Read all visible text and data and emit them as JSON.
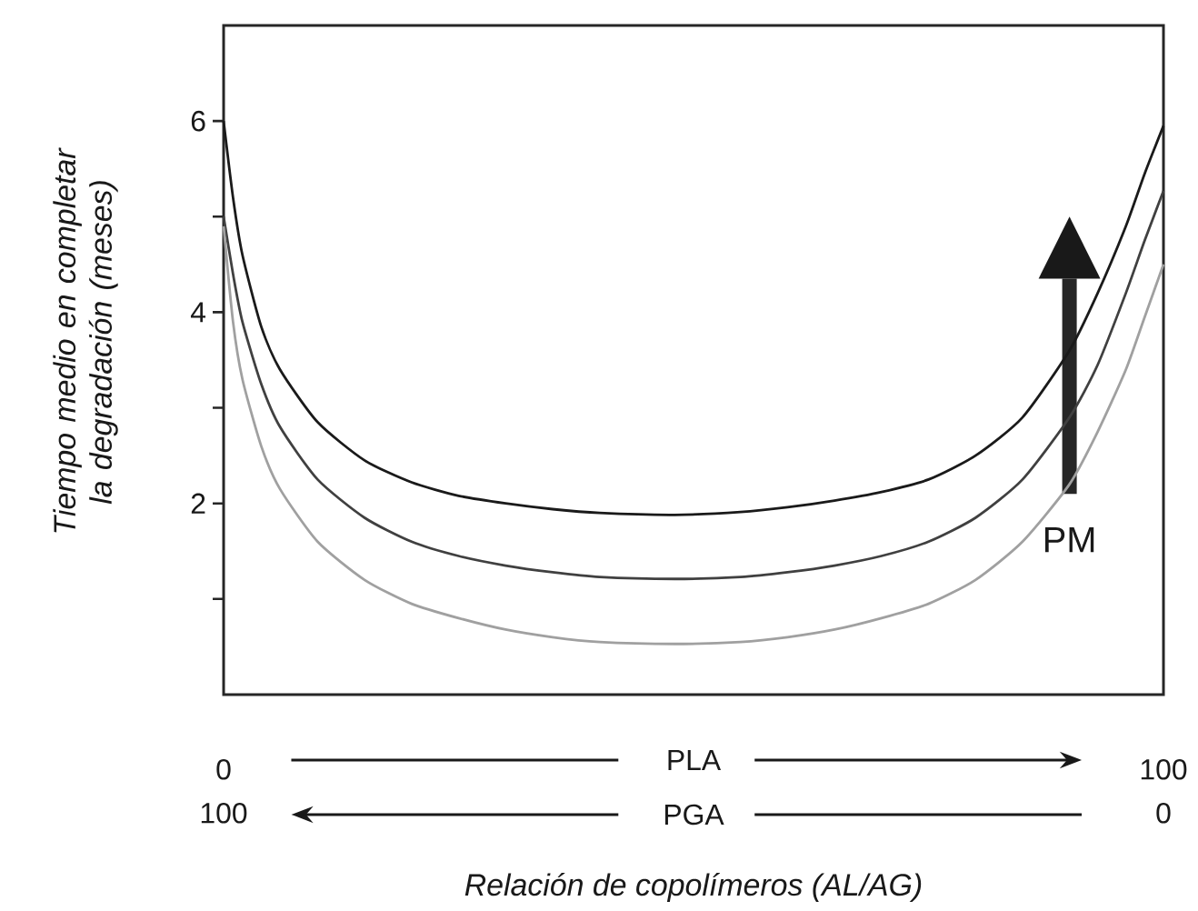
{
  "chart_data": {
    "type": "line",
    "xlabel": "Relación de copolímeros (AL/AG)",
    "ylabel": "Tiempo medio en completar la degradación (meses)",
    "x": [
      0,
      1,
      2,
      4,
      6,
      10,
      15,
      20,
      25,
      30,
      35,
      40,
      48,
      55,
      60,
      65,
      70,
      75,
      80,
      85,
      90,
      93,
      96,
      98,
      100
    ],
    "series": [
      {
        "color": "#1a1a1a",
        "values": [
          6.0,
          5.2,
          4.6,
          3.85,
          3.4,
          2.85,
          2.45,
          2.22,
          2.08,
          2.0,
          1.94,
          1.9,
          1.88,
          1.91,
          1.96,
          2.03,
          2.12,
          2.25,
          2.5,
          2.9,
          3.6,
          4.2,
          4.9,
          5.45,
          5.95
        ]
      },
      {
        "color": "#404040",
        "values": [
          5.0,
          4.4,
          3.9,
          3.25,
          2.8,
          2.25,
          1.85,
          1.6,
          1.45,
          1.35,
          1.28,
          1.23,
          1.21,
          1.23,
          1.28,
          1.35,
          1.45,
          1.6,
          1.85,
          2.25,
          2.9,
          3.45,
          4.2,
          4.75,
          5.27
        ]
      },
      {
        "color": "#a0a0a0",
        "values": [
          4.9,
          3.9,
          3.3,
          2.6,
          2.15,
          1.6,
          1.2,
          0.95,
          0.8,
          0.68,
          0.6,
          0.55,
          0.53,
          0.55,
          0.6,
          0.68,
          0.8,
          0.95,
          1.2,
          1.6,
          2.2,
          2.75,
          3.4,
          3.95,
          4.5
        ]
      }
    ],
    "xlim": [
      0,
      100
    ],
    "xticks": [
      0,
      100
    ],
    "x2lim": [
      100,
      0
    ],
    "x2ticks": [
      100,
      0
    ],
    "ylim": [
      0,
      7
    ],
    "yticks": [
      {
        "value": 1,
        "label": null
      },
      2,
      {
        "value": 3,
        "label": null
      },
      4,
      {
        "value": 5,
        "label": null
      },
      6
    ],
    "annotations": [
      "PLA",
      "PGA",
      "PM"
    ]
  }
}
